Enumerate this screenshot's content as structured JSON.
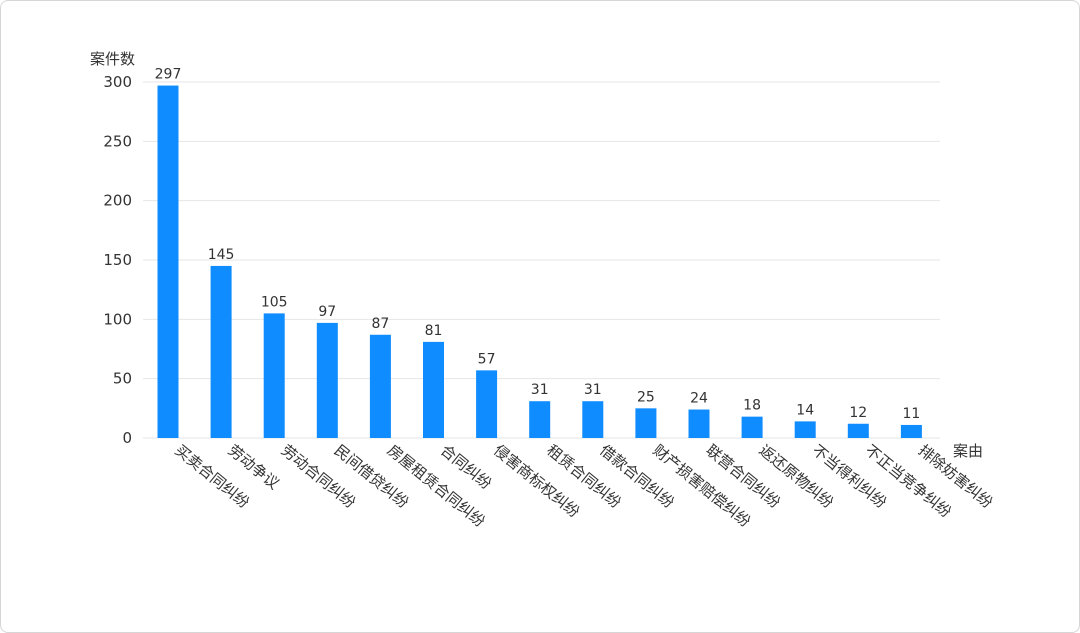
{
  "chart_data": {
    "type": "bar",
    "title": "",
    "xlabel": "案由",
    "ylabel": "案件数",
    "ylim": [
      0,
      300
    ],
    "yticks": [
      0,
      50,
      100,
      150,
      200,
      250,
      300
    ],
    "grid": true,
    "categories": [
      "买卖合同纠纷",
      "劳动争议",
      "劳动合同纠纷",
      "民间借贷纠纷",
      "房屋租赁合同纠纷",
      "合同纠纷",
      "侵害商标权纠纷",
      "租赁合同纠纷",
      "借款合同纠纷",
      "财产损害赔偿纠纷",
      "联营合同纠纷",
      "返还原物纠纷",
      "不当得利纠纷",
      "不正当竞争纠纷",
      "排除妨害纠纷"
    ],
    "values": [
      297,
      145,
      105,
      97,
      87,
      81,
      57,
      31,
      31,
      25,
      24,
      18,
      14,
      12,
      11
    ],
    "bar_color": "#0f8cff",
    "grid_color": "#e6e6e6",
    "text_color": "#333333"
  }
}
